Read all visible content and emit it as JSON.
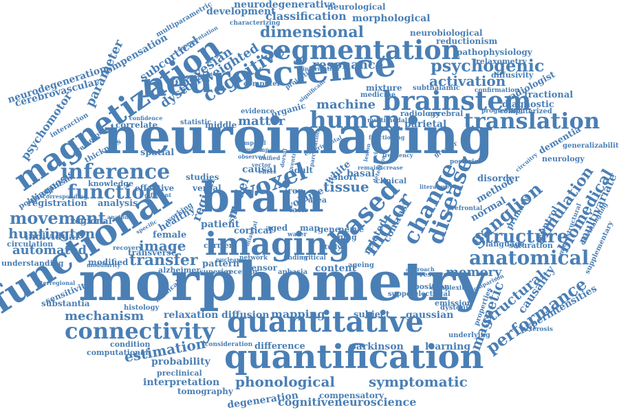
{
  "colors": {
    "word": "#4a7fb5",
    "background": "#ffffff"
  },
  "words": [
    "neuroimaging",
    "morphometry",
    "neuroscience",
    "brain",
    "functional",
    "imaging",
    "quantification",
    "quantitative",
    "magnetization",
    "segmentation",
    "based",
    "voxel",
    "brainstem",
    "connectivity",
    "human",
    "translation",
    "disease",
    "change",
    "anatomical",
    "inference",
    "function",
    "motor",
    "cognitive",
    "dimensional",
    "psychogenic",
    "activation",
    "tissue",
    "structure",
    "ganglion",
    "movement",
    "transfer",
    "huntington",
    "performance",
    "structural",
    "magnetic",
    "simulation",
    "biomedical",
    "multivariate",
    "memory",
    "automated",
    "image",
    "mechanism",
    "estimation",
    "phonological",
    "symptomatic",
    "cognitiveneuroscience",
    "probability",
    "interpretation",
    "tomography",
    "parkinson",
    "learning",
    "difference",
    "degeneration",
    "compensatory",
    "mapping",
    "diffusion",
    "relaxation",
    "subject",
    "gaussian",
    "content",
    "volume",
    "cortical",
    "dystonia",
    "bayesian",
    "weighted",
    "resonance",
    "machine",
    "matter",
    "parietal",
    "classification",
    "development",
    "neurodegenerative",
    "neurological",
    "morphological",
    "neurobiological",
    "reductionism",
    "pathophysiology",
    "relaxometry",
    "diffusivity",
    "radiologist",
    "fractional",
    "diagnostic",
    "dementia",
    "neurology",
    "generalizability",
    "compensation",
    "subcortical",
    "parameter",
    "psychomotor",
    "neurodegeneration",
    "cerebrovascular",
    "diagnosis",
    "knowledge",
    "polymorphism",
    "thickness",
    "registration",
    "individual",
    "circulation",
    "understanding",
    "sensitivity",
    "substantia",
    "modified",
    "effective",
    "analysis",
    "regional",
    "healthy",
    "female",
    "region",
    "model",
    "patient",
    "pattern",
    "alzheimer",
    "transverse",
    "network",
    "clinical",
    "method",
    "normal",
    "disorder",
    "control",
    "primary",
    "causality",
    "hyperintensities",
    "saturation",
    "language",
    "supplementary",
    "condition",
    "computational",
    "preclinical",
    "histology",
    "medical",
    "emission",
    "positron",
    "dystonic",
    "electrical",
    "support",
    "related",
    "contrast",
    "white",
    "short",
    "basal",
    "causal",
    "studies",
    "system",
    "gene",
    "nerve",
    "aging",
    "adult",
    "iron",
    "task",
    "area",
    "map",
    "aged",
    "carrier",
    "tensor",
    "receptor",
    "superior",
    "nuclear",
    "finding",
    "critical",
    "aphasia",
    "spatial",
    "verbal",
    "correlate",
    "middle",
    "statistic",
    "evidence",
    "organic",
    "computer",
    "mixture",
    "medicine",
    "subthalamic",
    "radiology",
    "cerebral",
    "multiparametric",
    "characterizing",
    "interaction",
    "premotor",
    "multimodal",
    "projection",
    "confirmation",
    "progressing",
    "computerized",
    "microstructural",
    "disentangling",
    "underlying",
    "properties",
    "complexity",
    "reserve",
    "ageing",
    "consideration",
    "recovery",
    "working",
    "study",
    "water",
    "greater",
    "posterior",
    "prefrontal",
    "sclerosis",
    "assisted",
    "representation",
    "confidence",
    "information",
    "significant",
    "interregional",
    "specific",
    "anatomy",
    "different",
    "modularity",
    "corresponding",
    "remain",
    "increase",
    "approach",
    "detection",
    "literature",
    "experimental",
    "bilateral",
    "functioning",
    "frequency",
    "circuitry",
    "comparison",
    "vector",
    "unified",
    "impact",
    "parcellation",
    "temporal",
    "complex",
    "observed",
    "effect",
    "dorsal",
    "ventral",
    "lesion",
    "visual"
  ]
}
